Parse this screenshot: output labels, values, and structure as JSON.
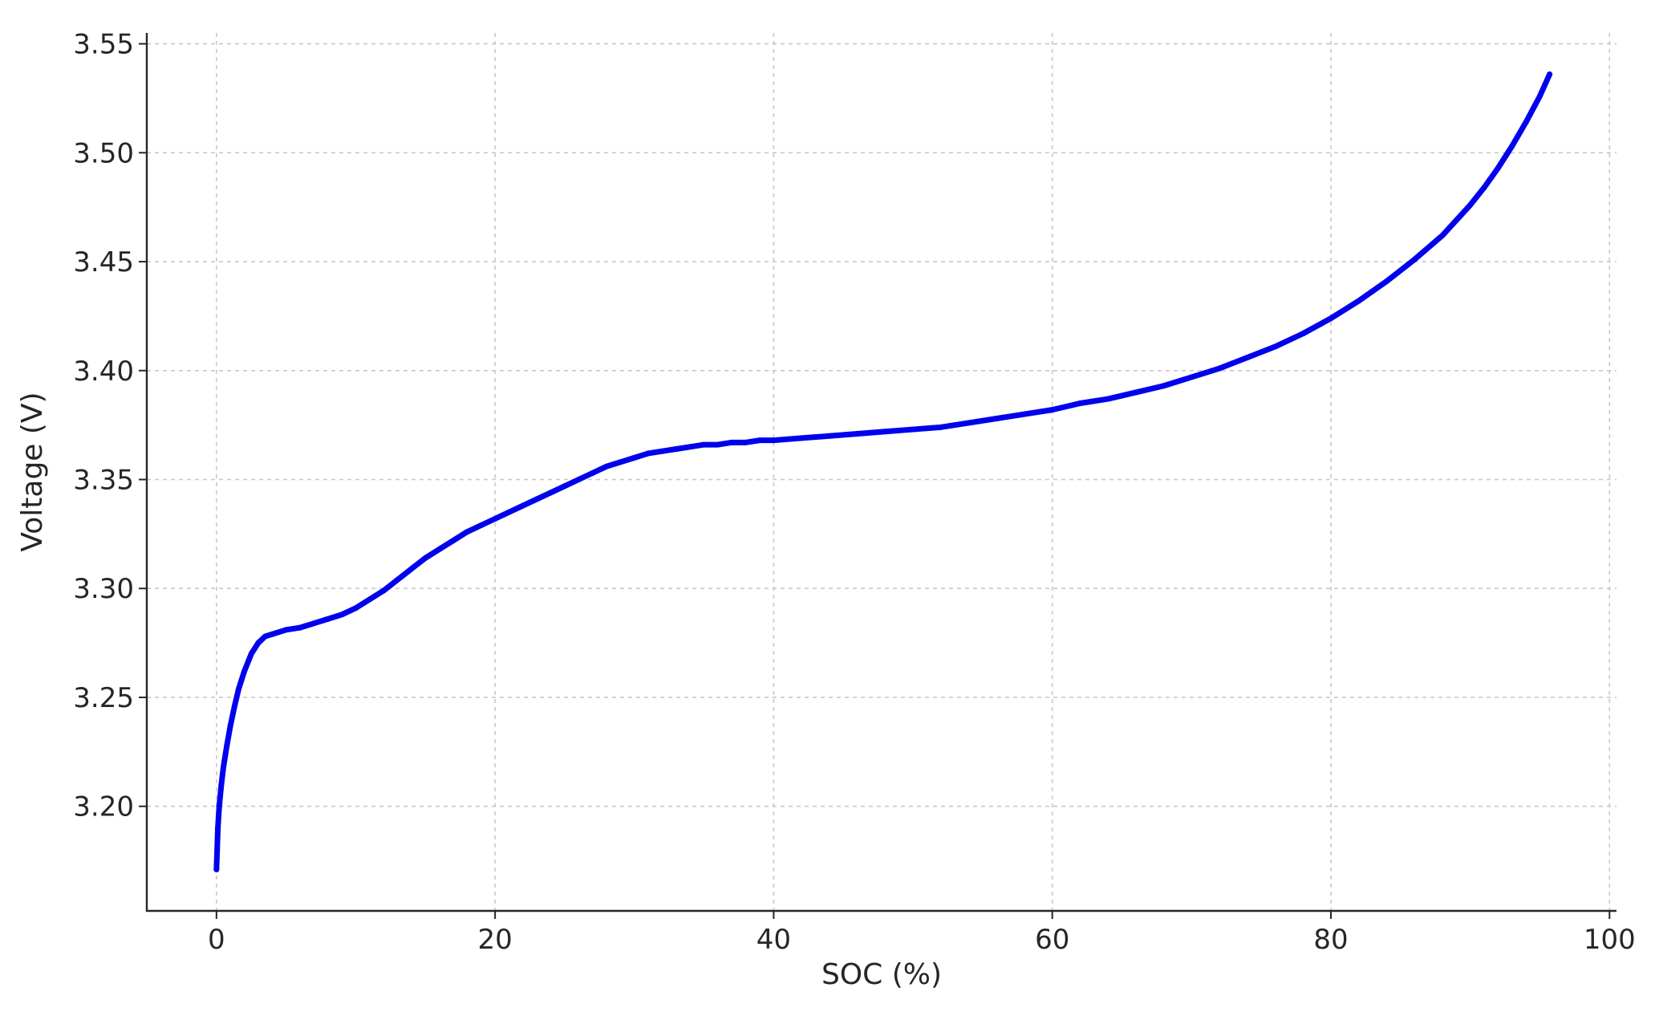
{
  "chart_data": {
    "type": "scatter",
    "title": "",
    "xlabel": "SOC (%)",
    "ylabel": "Voltage (V)",
    "xlim": [
      -5,
      100.5
    ],
    "ylim": [
      3.152,
      3.555
    ],
    "x_ticks": [
      0,
      20,
      40,
      60,
      80,
      100
    ],
    "x_tick_labels": [
      "0",
      "20",
      "40",
      "60",
      "80",
      "100"
    ],
    "y_ticks": [
      3.2,
      3.25,
      3.3,
      3.35,
      3.4,
      3.45,
      3.5,
      3.55
    ],
    "y_tick_labels": [
      "3.20",
      "3.25",
      "3.30",
      "3.35",
      "3.40",
      "3.45",
      "3.50",
      "3.55"
    ],
    "grid": true,
    "series": [
      {
        "color": "#0000ee",
        "points": [
          [
            0.0,
            3.171
          ],
          [
            0.05,
            3.18
          ],
          [
            0.1,
            3.19
          ],
          [
            0.2,
            3.2
          ],
          [
            0.35,
            3.21
          ],
          [
            0.5,
            3.218
          ],
          [
            0.75,
            3.228
          ],
          [
            1.0,
            3.237
          ],
          [
            1.3,
            3.246
          ],
          [
            1.6,
            3.254
          ],
          [
            2.0,
            3.262
          ],
          [
            2.5,
            3.27
          ],
          [
            3.0,
            3.275
          ],
          [
            3.5,
            3.278
          ],
          [
            4.0,
            3.279
          ],
          [
            5.0,
            3.281
          ],
          [
            6.0,
            3.282
          ],
          [
            7.0,
            3.284
          ],
          [
            8.0,
            3.286
          ],
          [
            9.0,
            3.288
          ],
          [
            10.0,
            3.291
          ],
          [
            11.0,
            3.295
          ],
          [
            12.0,
            3.299
          ],
          [
            13.0,
            3.304
          ],
          [
            14.0,
            3.309
          ],
          [
            15.0,
            3.314
          ],
          [
            16.0,
            3.318
          ],
          [
            17.0,
            3.322
          ],
          [
            18.0,
            3.326
          ],
          [
            19.0,
            3.329
          ],
          [
            20.0,
            3.332
          ],
          [
            21.0,
            3.335
          ],
          [
            22.0,
            3.338
          ],
          [
            23.0,
            3.341
          ],
          [
            24.0,
            3.344
          ],
          [
            25.0,
            3.347
          ],
          [
            26.0,
            3.35
          ],
          [
            27.0,
            3.353
          ],
          [
            28.0,
            3.356
          ],
          [
            29.0,
            3.358
          ],
          [
            30.0,
            3.36
          ],
          [
            31.0,
            3.362
          ],
          [
            32.0,
            3.363
          ],
          [
            33.0,
            3.364
          ],
          [
            34.0,
            3.365
          ],
          [
            35.0,
            3.366
          ],
          [
            36.0,
            3.366
          ],
          [
            37.0,
            3.367
          ],
          [
            38.0,
            3.367
          ],
          [
            39.0,
            3.368
          ],
          [
            40.0,
            3.368
          ],
          [
            42.0,
            3.369
          ],
          [
            44.0,
            3.37
          ],
          [
            46.0,
            3.371
          ],
          [
            48.0,
            3.372
          ],
          [
            50.0,
            3.373
          ],
          [
            52.0,
            3.374
          ],
          [
            54.0,
            3.376
          ],
          [
            56.0,
            3.378
          ],
          [
            58.0,
            3.38
          ],
          [
            60.0,
            3.382
          ],
          [
            62.0,
            3.385
          ],
          [
            64.0,
            3.387
          ],
          [
            66.0,
            3.39
          ],
          [
            68.0,
            3.393
          ],
          [
            70.0,
            3.397
          ],
          [
            72.0,
            3.401
          ],
          [
            74.0,
            3.406
          ],
          [
            76.0,
            3.411
          ],
          [
            78.0,
            3.417
          ],
          [
            80.0,
            3.424
          ],
          [
            82.0,
            3.432
          ],
          [
            84.0,
            3.441
          ],
          [
            86.0,
            3.451
          ],
          [
            88.0,
            3.462
          ],
          [
            90.0,
            3.476
          ],
          [
            91.0,
            3.484
          ],
          [
            92.0,
            3.493
          ],
          [
            93.0,
            3.503
          ],
          [
            94.0,
            3.514
          ],
          [
            95.0,
            3.526
          ],
          [
            95.7,
            3.536
          ]
        ]
      }
    ]
  }
}
